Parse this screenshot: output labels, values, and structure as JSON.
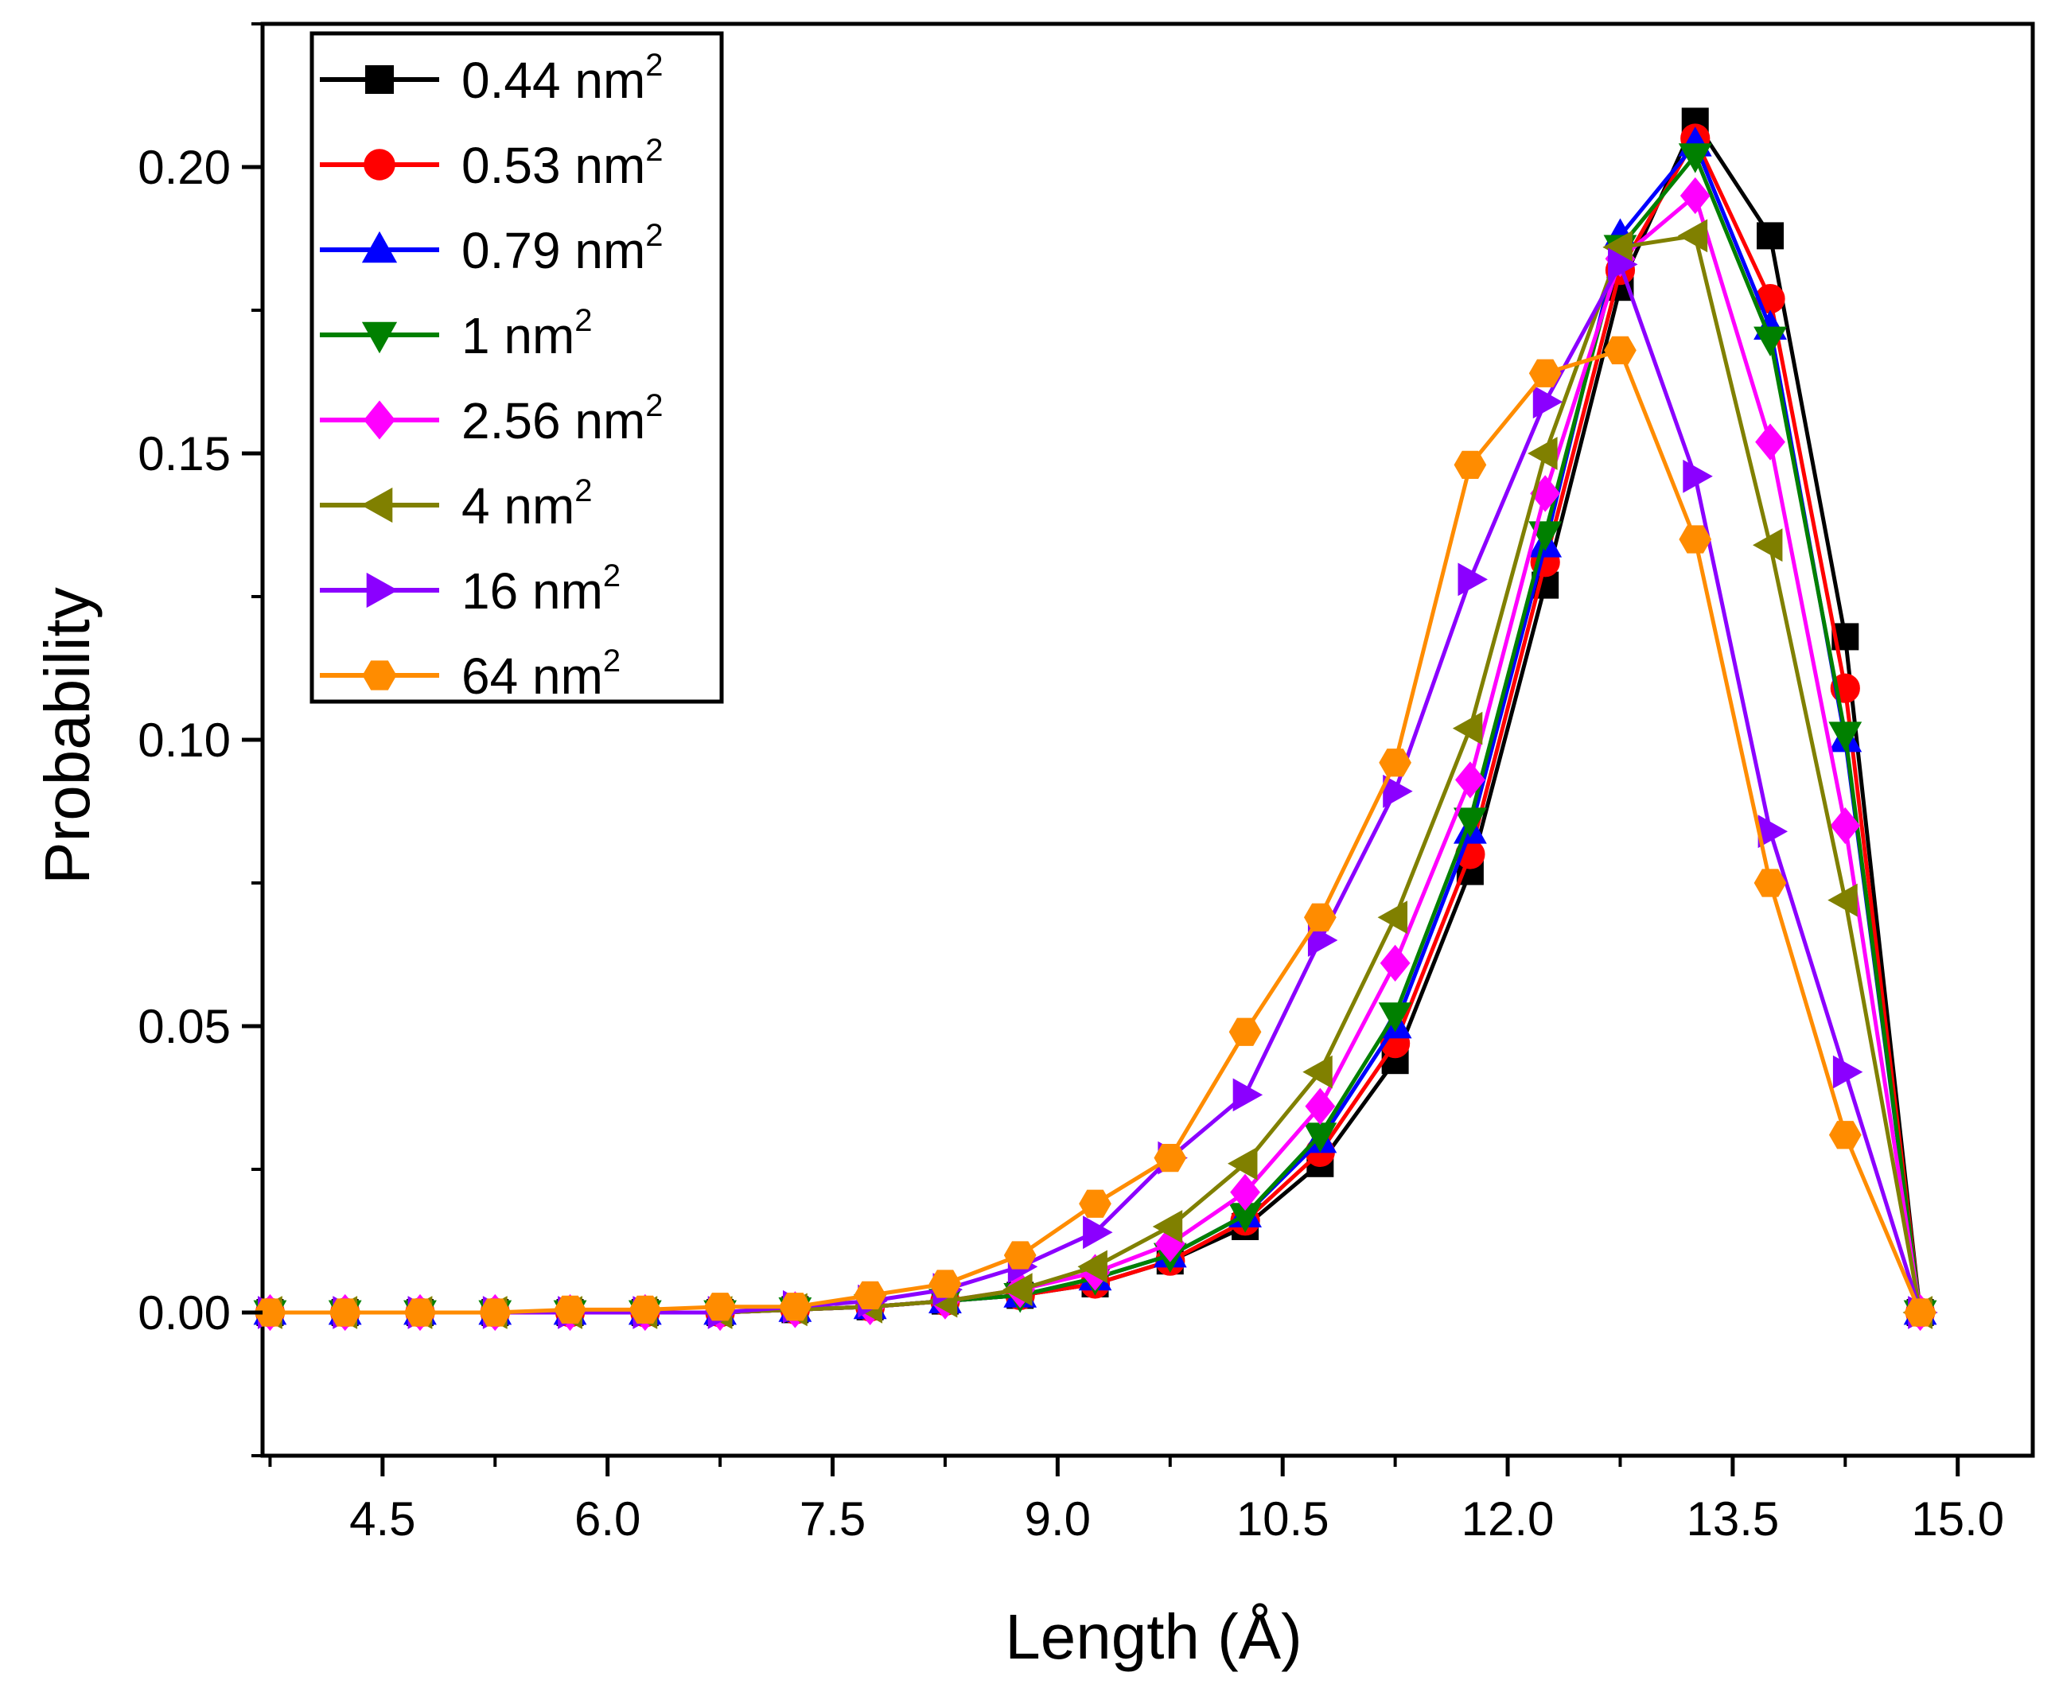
{
  "chart_data": {
    "type": "line",
    "title": "",
    "xlabel": "Length (Å)",
    "ylabel": "Probability",
    "xlim": [
      3.7,
      15.5
    ],
    "ylim": [
      -0.025,
      0.225
    ],
    "x_ticks": [
      "4.5",
      "6.0",
      "7.5",
      "9.0",
      "10.5",
      "12.0",
      "13.5",
      "15.0"
    ],
    "y_ticks": [
      "0.00",
      "0.05",
      "0.10",
      "0.15",
      "0.20"
    ],
    "legend_position": "top-left",
    "x": [
      3.75,
      4.25,
      4.75,
      5.25,
      5.75,
      6.25,
      6.75,
      7.25,
      7.75,
      8.25,
      8.75,
      9.25,
      9.75,
      10.25,
      10.75,
      11.25,
      11.75,
      12.25,
      12.75,
      13.25,
      13.75,
      14.25,
      14.75
    ],
    "series": [
      {
        "name": "0.44 nm",
        "unit_sup": "2",
        "color": "#000000",
        "marker": "square",
        "values": [
          0,
          0,
          0,
          0,
          0,
          0,
          0,
          0.0005,
          0.001,
          0.002,
          0.003,
          0.005,
          0.009,
          0.015,
          0.026,
          0.044,
          0.077,
          0.127,
          0.179,
          0.208,
          0.188,
          0.118,
          0
        ]
      },
      {
        "name": "0.53 nm",
        "unit_sup": "2",
        "color": "#ff0000",
        "marker": "circle",
        "values": [
          0,
          0,
          0,
          0,
          0,
          0,
          0,
          0.0005,
          0.001,
          0.002,
          0.003,
          0.005,
          0.009,
          0.016,
          0.028,
          0.047,
          0.08,
          0.131,
          0.182,
          0.205,
          0.177,
          0.109,
          0
        ]
      },
      {
        "name": "0.79 nm",
        "unit_sup": "2",
        "color": "#0000ff",
        "marker": "triangle-up",
        "values": [
          0,
          0,
          0,
          0,
          0,
          0,
          0,
          0.0005,
          0.001,
          0.002,
          0.003,
          0.006,
          0.01,
          0.017,
          0.03,
          0.05,
          0.084,
          0.134,
          0.188,
          0.204,
          0.172,
          0.1,
          0
        ]
      },
      {
        "name": "1 nm",
        "unit_sup": "2",
        "color": "#008000",
        "marker": "triangle-down",
        "values": [
          0,
          0,
          0,
          0,
          0,
          0,
          0,
          0.0005,
          0.001,
          0.002,
          0.003,
          0.006,
          0.01,
          0.017,
          0.031,
          0.052,
          0.086,
          0.136,
          0.186,
          0.202,
          0.17,
          0.101,
          0
        ]
      },
      {
        "name": "2.56 nm",
        "unit_sup": "2",
        "color": "#ff00ff",
        "marker": "diamond",
        "values": [
          0,
          0,
          0,
          0,
          0,
          0,
          0,
          0.0005,
          0.001,
          0.002,
          0.004,
          0.007,
          0.012,
          0.021,
          0.036,
          0.061,
          0.093,
          0.143,
          0.184,
          0.195,
          0.152,
          0.085,
          0
        ]
      },
      {
        "name": "4 nm",
        "unit_sup": "2",
        "color": "#808000",
        "marker": "triangle-left",
        "values": [
          0,
          0,
          0,
          0,
          0,
          0,
          0,
          0.0005,
          0.001,
          0.002,
          0.004,
          0.008,
          0.015,
          0.026,
          0.042,
          0.069,
          0.102,
          0.15,
          0.186,
          0.188,
          0.134,
          0.072,
          0
        ]
      },
      {
        "name": "16 nm",
        "unit_sup": "2",
        "color": "#8b00ff",
        "marker": "triangle-right",
        "values": [
          0,
          0,
          0,
          0,
          0,
          0,
          0,
          0.001,
          0.002,
          0.004,
          0.008,
          0.014,
          0.027,
          0.038,
          0.065,
          0.091,
          0.128,
          0.159,
          0.183,
          0.146,
          0.084,
          0.042,
          0
        ]
      },
      {
        "name": "64 nm",
        "unit_sup": "2",
        "color": "#ff8c00",
        "marker": "hexagon",
        "values": [
          0,
          0,
          0,
          0,
          0.0005,
          0.0005,
          0.001,
          0.001,
          0.003,
          0.005,
          0.01,
          0.019,
          0.027,
          0.049,
          0.069,
          0.096,
          0.148,
          0.164,
          0.168,
          0.135,
          0.075,
          0.031,
          0
        ]
      }
    ]
  }
}
